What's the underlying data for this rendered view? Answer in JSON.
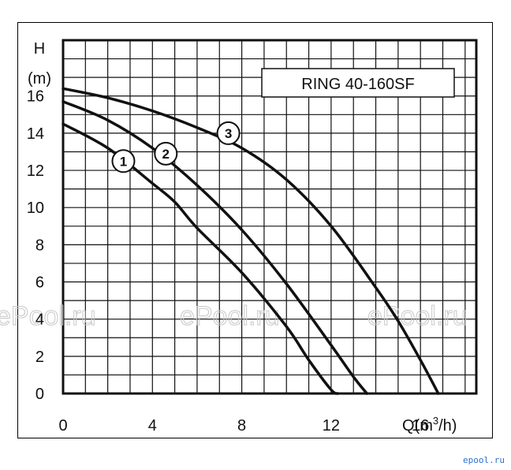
{
  "chart_data": {
    "type": "line",
    "title": "RING 40-160SF",
    "ylabel_line1": "H",
    "ylabel_line2": "(m)",
    "xlabel_main": "Q(m",
    "xlabel_sup": "3",
    "xlabel_tail": "/h)",
    "xlim": [
      0,
      18.5
    ],
    "ylim": [
      0,
      19
    ],
    "x_ticks": [
      0,
      4,
      8,
      12,
      16
    ],
    "y_ticks": [
      0,
      2,
      4,
      6,
      8,
      10,
      12,
      14,
      16
    ],
    "grid": true,
    "series": [
      {
        "name": "1",
        "x": [
          0,
          2,
          4,
          5,
          6,
          8,
          10,
          11,
          12,
          12.3
        ],
        "y": [
          14.5,
          13.2,
          11.3,
          10.3,
          8.9,
          6.5,
          3.6,
          1.8,
          0.2,
          0
        ]
      },
      {
        "name": "2",
        "x": [
          0,
          2,
          4,
          6,
          8,
          10,
          12,
          13,
          13.6
        ],
        "y": [
          15.7,
          14.7,
          13.2,
          11.2,
          8.8,
          5.9,
          2.6,
          0.9,
          0
        ]
      },
      {
        "name": "3",
        "x": [
          0,
          2,
          4,
          6,
          8,
          10,
          12,
          14,
          15,
          16,
          16.8
        ],
        "y": [
          16.4,
          15.9,
          15.2,
          14.3,
          13.2,
          11.5,
          9.0,
          5.7,
          3.9,
          1.8,
          0
        ]
      }
    ],
    "labels": [
      {
        "text": "1",
        "x": 2.7,
        "y": 12.5
      },
      {
        "text": "2",
        "x": 4.6,
        "y": 12.9
      },
      {
        "text": "3",
        "x": 7.4,
        "y": 14.0
      }
    ]
  },
  "watermark": "ePool.ru",
  "logo": "epool.ru"
}
